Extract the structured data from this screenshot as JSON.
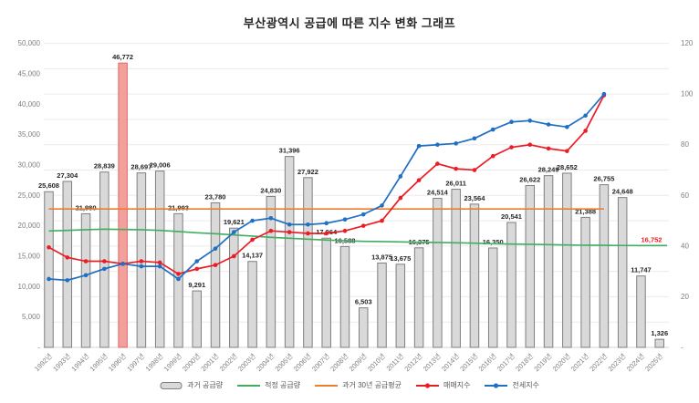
{
  "title": "부산광역시 공급에 따른 지수 변화 그래프",
  "left_axis": {
    "ticks": [
      "50,000",
      "45,000",
      "40,000",
      "35,000",
      "30,000",
      "25,000",
      "20,000",
      "15,000",
      "10,000",
      "5,000",
      "-"
    ],
    "max": 50000,
    "step": 5000
  },
  "right_axis": {
    "ticks": [
      "120",
      "100",
      "80",
      "60",
      "40",
      "20",
      "-"
    ],
    "max": 120,
    "step": 20
  },
  "colors": {
    "bar_fill": "#d9d9d9",
    "bar_border": "#7f7f7f",
    "highlight_fill": "#f2a09c",
    "highlight_border": "#e06a63",
    "green": "#3fae5f",
    "orange": "#ed7d31",
    "red": "#ec1c24",
    "blue": "#1f6fc4",
    "grid": "#ebebeb",
    "axis_text": "#7f7f7f",
    "label_text": "#262626",
    "legend_text": "#595959"
  },
  "legend": [
    {
      "label": "과거 공급량",
      "type": "bar",
      "color": "#d9d9d9",
      "border": "#7f7f7f"
    },
    {
      "label": "적정 공급량",
      "type": "line",
      "color": "#3fae5f"
    },
    {
      "label": "과거 30년 공급평균",
      "type": "line",
      "color": "#ed7d31"
    },
    {
      "label": "매매지수",
      "type": "line-dot",
      "color": "#ec1c24"
    },
    {
      "label": "전세지수",
      "type": "line-dot",
      "color": "#1f6fc4"
    }
  ],
  "chart_data": {
    "type": "bar",
    "subtype": "bar+line combo, dual axis",
    "title": "부산광역시 공급에 따른 지수 변화 그래프",
    "xlabel": "",
    "ylabel_left": "공급량",
    "ylabel_right": "지수",
    "left_ylim": [
      0,
      50000
    ],
    "right_ylim": [
      0,
      120
    ],
    "grid": true,
    "legend_position": "bottom",
    "categories": [
      "1992년",
      "1993년",
      "1994년",
      "1995년",
      "1996년",
      "1997년",
      "1998년",
      "1999년",
      "2000년",
      "2001년",
      "2002년",
      "2003년",
      "2004년",
      "2005년",
      "2006년",
      "2007년",
      "2008년",
      "2009년",
      "2010년",
      "2011년",
      "2012년",
      "2013년",
      "2014년",
      "2015년",
      "2016년",
      "2017년",
      "2018년",
      "2019년",
      "2020년",
      "2021년",
      "2022년",
      "2023년",
      "2024년",
      "2025년"
    ],
    "series": [
      {
        "name": "과거 공급량",
        "type": "bar",
        "axis": "left",
        "highlight_index": 4,
        "values": [
          25608,
          27304,
          21980,
          28839,
          46772,
          28697,
          29006,
          21993,
          9291,
          23780,
          19621,
          14137,
          24830,
          31396,
          27922,
          17964,
          16588,
          6503,
          13875,
          13675,
          16375,
          24514,
          26011,
          23564,
          16350,
          20541,
          26622,
          28249,
          28652,
          21388,
          26755,
          24648,
          11747,
          1326
        ]
      },
      {
        "name": "적정 공급량",
        "type": "line",
        "axis": "left",
        "end_label": "16,752",
        "values": [
          19150,
          19250,
          19350,
          19450,
          19400,
          19350,
          19250,
          19050,
          18850,
          18700,
          18500,
          18300,
          18100,
          17950,
          17800,
          17650,
          17550,
          17450,
          17400,
          17350,
          17300,
          17250,
          17200,
          17150,
          17050,
          17000,
          16950,
          16900,
          16850,
          16800,
          16780,
          16760,
          16752,
          16752
        ]
      },
      {
        "name": "과거 30년 공급평균",
        "type": "line-constant",
        "axis": "left",
        "value": 22770,
        "span": [
          0,
          30
        ]
      },
      {
        "name": "매매지수",
        "type": "line-dot",
        "axis": "right",
        "values": [
          39.5,
          35.5,
          34,
          34,
          33,
          34,
          33.5,
          29,
          31,
          32.5,
          36,
          42.5,
          46,
          45.5,
          45,
          45,
          46,
          48,
          50,
          59,
          66,
          72.5,
          70.5,
          70,
          75.5,
          79,
          80,
          78.5,
          77.5,
          85.5,
          99.5
        ]
      },
      {
        "name": "전세지수",
        "type": "line-dot",
        "axis": "right",
        "values": [
          27,
          26.5,
          28.5,
          31,
          33,
          32,
          32,
          27,
          34,
          39,
          45.5,
          50,
          51,
          48.5,
          48.5,
          49,
          50.5,
          52.5,
          56,
          67.5,
          79.5,
          80,
          80.5,
          82.5,
          86,
          89,
          89.5,
          88,
          87,
          91.5,
          100
        ]
      }
    ]
  }
}
